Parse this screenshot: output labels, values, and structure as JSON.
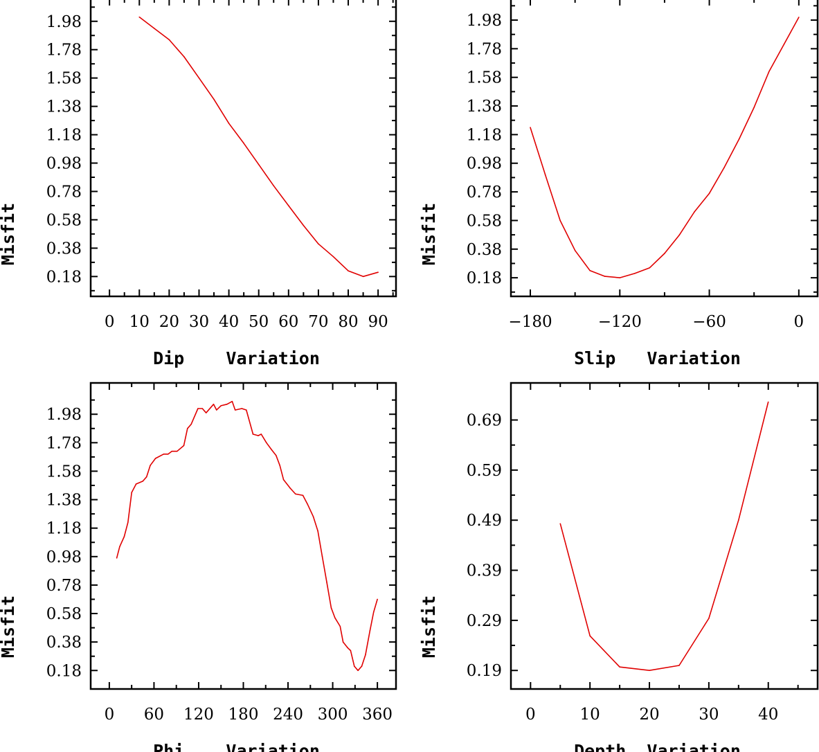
{
  "line_color": "#e00000",
  "chart_data": [
    {
      "type": "line",
      "xlabel": "Dip    Variation",
      "ylabel": "Misfit",
      "xlim": [
        -6.3,
        96
      ],
      "ylim": [
        0.04,
        2.14
      ],
      "xticks_major": [
        0,
        10,
        20,
        30,
        40,
        50,
        60,
        70,
        80,
        90
      ],
      "xtick_labels": [
        "0",
        "10",
        "20",
        "30",
        "40",
        "50",
        "60",
        "70",
        "80",
        "90"
      ],
      "xticks_minor": [
        5,
        15,
        25,
        35,
        45,
        55,
        65,
        75,
        85,
        95
      ],
      "yticks_major": [
        0.18,
        0.38,
        0.58,
        0.78,
        0.98,
        1.18,
        1.38,
        1.58,
        1.78,
        1.98
      ],
      "ytick_labels": [
        "0.18",
        "0.38",
        "0.58",
        "0.78",
        "0.98",
        "1.18",
        "1.38",
        "1.58",
        "1.78",
        "1.98"
      ],
      "yticks_minor": [
        0.08,
        0.28,
        0.48,
        0.68,
        0.88,
        1.08,
        1.28,
        1.48,
        1.68,
        1.88,
        2.08
      ],
      "x": [
        10,
        15,
        20,
        25,
        30,
        35,
        40,
        45,
        50,
        55,
        60,
        65,
        70,
        75,
        80,
        85,
        90
      ],
      "y": [
        2.01,
        1.93,
        1.85,
        1.73,
        1.58,
        1.43,
        1.26,
        1.12,
        0.97,
        0.82,
        0.68,
        0.54,
        0.41,
        0.32,
        0.22,
        0.18,
        0.21
      ]
    },
    {
      "type": "line",
      "xlabel": "Slip   Variation",
      "ylabel": "Misfit",
      "xlim": [
        -193,
        12.6
      ],
      "ylim": [
        0.05,
        2.13
      ],
      "xticks_major": [
        -180,
        -120,
        -60,
        0
      ],
      "xtick_labels": [
        "−180",
        "−120",
        "−60",
        "0"
      ],
      "xticks_minor": [
        -150,
        -90,
        -30
      ],
      "yticks_major": [
        0.18,
        0.38,
        0.58,
        0.78,
        0.98,
        1.18,
        1.38,
        1.58,
        1.78,
        1.98
      ],
      "ytick_labels": [
        "0.18",
        "0.38",
        "0.58",
        "0.78",
        "0.98",
        "1.18",
        "1.38",
        "1.58",
        "1.78",
        "1.98"
      ],
      "yticks_minor": [
        0.08,
        0.28,
        0.48,
        0.68,
        0.88,
        1.08,
        1.28,
        1.48,
        1.68,
        1.88,
        2.08
      ],
      "x": [
        -180,
        -170,
        -160,
        -150,
        -140,
        -130,
        -120,
        -110,
        -100,
        -90,
        -80,
        -70,
        -60,
        -50,
        -40,
        -30,
        -20,
        -10,
        0
      ],
      "y": [
        1.23,
        0.9,
        0.58,
        0.37,
        0.23,
        0.19,
        0.18,
        0.21,
        0.25,
        0.35,
        0.48,
        0.64,
        0.77,
        0.95,
        1.15,
        1.37,
        1.62,
        1.81,
        2.0
      ]
    },
    {
      "type": "line",
      "xlabel": "Phi    Variation",
      "ylabel": "Misfit",
      "xlim": [
        -25,
        385
      ],
      "ylim": [
        0.05,
        2.2
      ],
      "xticks_major": [
        0,
        60,
        120,
        180,
        240,
        300,
        360
      ],
      "xtick_labels": [
        "0",
        "60",
        "120",
        "180",
        "240",
        "300",
        "360"
      ],
      "xticks_minor": [
        30,
        90,
        150,
        210,
        270,
        330
      ],
      "yticks_major": [
        0.18,
        0.38,
        0.58,
        0.78,
        0.98,
        1.18,
        1.38,
        1.58,
        1.78,
        1.98
      ],
      "ytick_labels": [
        "0.18",
        "0.38",
        "0.58",
        "0.78",
        "0.98",
        "1.18",
        "1.38",
        "1.58",
        "1.78",
        "1.98"
      ],
      "yticks_minor": [
        0.28,
        0.48,
        0.68,
        0.88,
        1.08,
        1.28,
        1.48,
        1.68,
        1.88,
        2.08
      ],
      "x": [
        10,
        14,
        20,
        25,
        30,
        36,
        45,
        50,
        55,
        62,
        73,
        79,
        84,
        91,
        100,
        105,
        110,
        119,
        125,
        130,
        140,
        144,
        150,
        158,
        165,
        169,
        178,
        184,
        193,
        200,
        204,
        211,
        218,
        224,
        229,
        234,
        243,
        250,
        260,
        266,
        274,
        280,
        286,
        292,
        298,
        303,
        310,
        314,
        320,
        324,
        329,
        334,
        339,
        344,
        350,
        355,
        360
      ],
      "y": [
        0.97,
        1.05,
        1.12,
        1.22,
        1.43,
        1.49,
        1.51,
        1.54,
        1.62,
        1.67,
        1.7,
        1.7,
        1.72,
        1.72,
        1.76,
        1.88,
        1.91,
        2.02,
        2.02,
        1.99,
        2.05,
        2.01,
        2.04,
        2.05,
        2.07,
        2.01,
        2.02,
        2.01,
        1.84,
        1.83,
        1.84,
        1.78,
        1.73,
        1.69,
        1.62,
        1.52,
        1.46,
        1.42,
        1.41,
        1.35,
        1.26,
        1.16,
        0.98,
        0.8,
        0.62,
        0.55,
        0.49,
        0.38,
        0.34,
        0.32,
        0.21,
        0.18,
        0.21,
        0.29,
        0.46,
        0.59,
        0.68
      ]
    },
    {
      "type": "line",
      "xlabel": "Depth  Variation",
      "ylabel": "Misfit",
      "xlim": [
        -3.3,
        48.3
      ],
      "ylim": [
        0.153,
        0.764
      ],
      "xticks_major": [
        0,
        10,
        20,
        30,
        40
      ],
      "xtick_labels": [
        "0",
        "10",
        "20",
        "30",
        "40"
      ],
      "xticks_minor": [
        5,
        15,
        25,
        35,
        45
      ],
      "yticks_major": [
        0.19,
        0.29,
        0.39,
        0.49,
        0.59,
        0.69
      ],
      "ytick_labels": [
        "0.19",
        "0.29",
        "0.39",
        "0.49",
        "0.59",
        "0.69"
      ],
      "yticks_minor": [
        0.24,
        0.34,
        0.44,
        0.54,
        0.64
      ],
      "x": [
        5,
        10,
        15,
        20,
        25,
        30,
        35,
        40
      ],
      "y": [
        0.483,
        0.259,
        0.197,
        0.19,
        0.2,
        0.294,
        0.49,
        0.726
      ]
    }
  ]
}
